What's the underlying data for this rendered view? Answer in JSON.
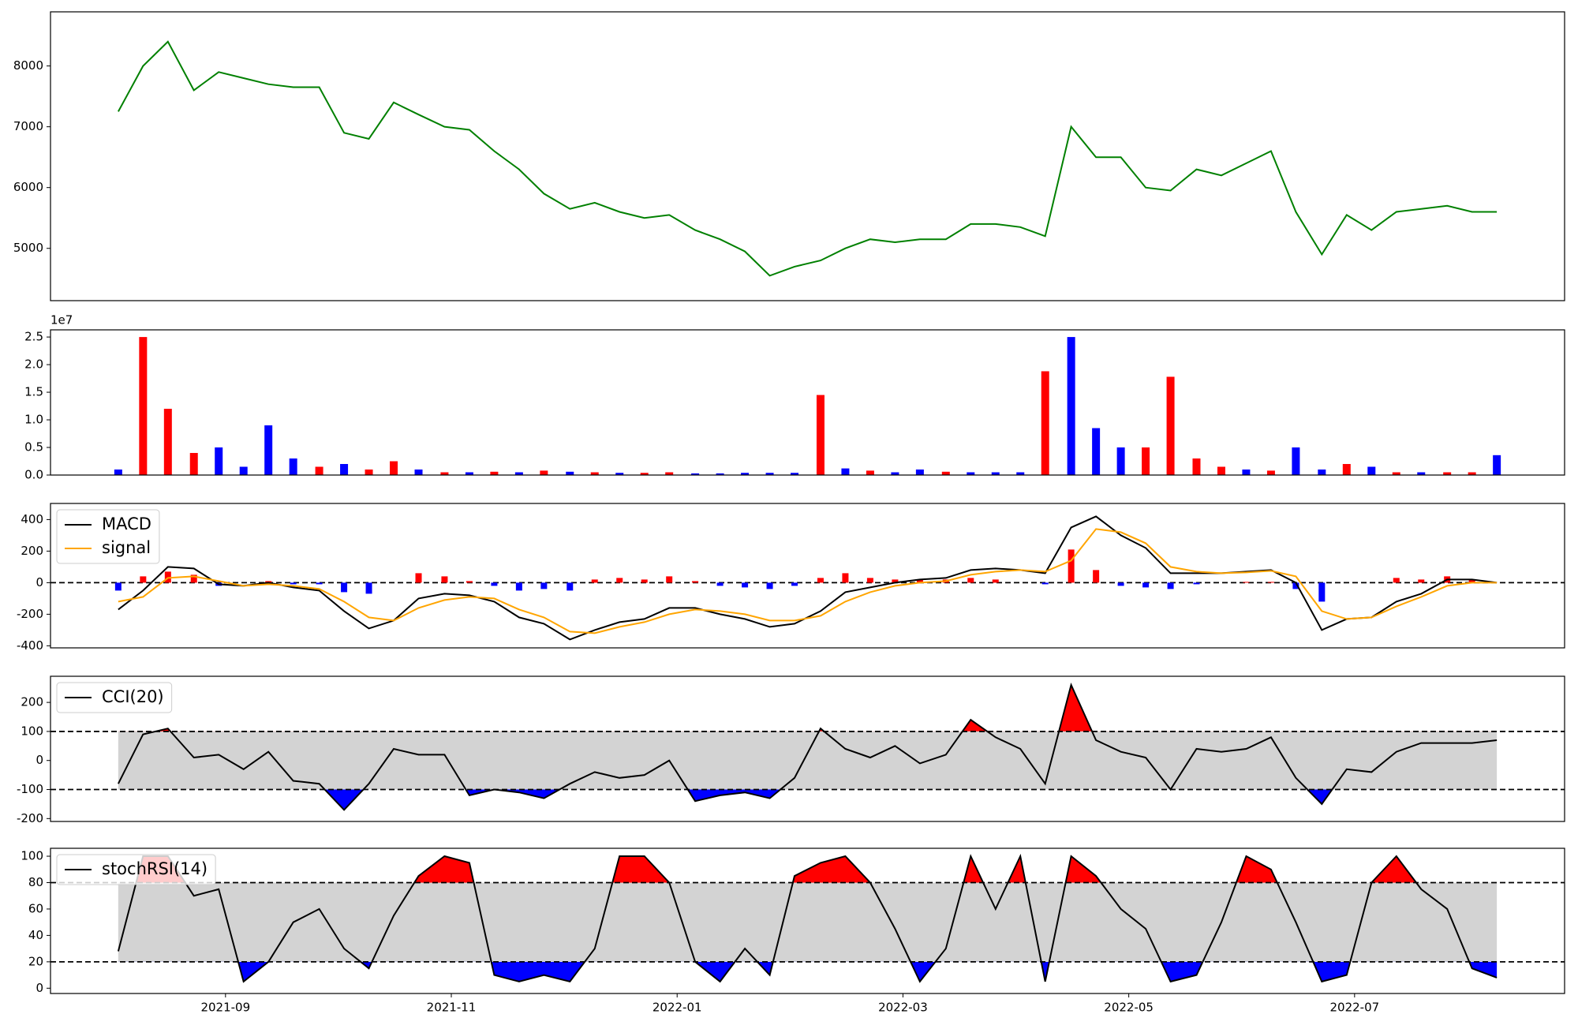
{
  "chart_data": [
    {
      "type": "line",
      "x": [
        0.05,
        0.27,
        0.49,
        0.72,
        0.94,
        1.16,
        1.38,
        1.6,
        1.83,
        2.05,
        2.27,
        2.49,
        2.71,
        2.94,
        3.16,
        3.38,
        3.6,
        3.82,
        4.05,
        4.27,
        4.49,
        4.71,
        4.93,
        5.16,
        5.38,
        5.6,
        5.82,
        6.04,
        6.27,
        6.49,
        6.71,
        6.93,
        7.15,
        7.38,
        7.6,
        7.82,
        8.04,
        8.26,
        8.49,
        8.71,
        8.93,
        9.15,
        9.37,
        9.6,
        9.82,
        10.04,
        10.26,
        10.48,
        10.71,
        10.93,
        11.15,
        11.37,
        11.59,
        11.82,
        12.04,
        12.26
      ],
      "xlim": [
        -0.55,
        12.86
      ],
      "ylim": [
        4140,
        8890
      ],
      "yticks": [
        5000,
        6000,
        7000,
        8000
      ],
      "series": [
        {
          "color": "green",
          "values": [
            7250,
            8000,
            8400,
            7600,
            7900,
            7800,
            7700,
            7650,
            7650,
            6900,
            6800,
            7400,
            7200,
            7000,
            6950,
            6600,
            6300,
            5900,
            5650,
            5750,
            5600,
            5500,
            5550,
            5300,
            5150,
            4950,
            4550,
            4700,
            4800,
            5000,
            5150,
            5100,
            5150,
            5150,
            5400,
            5400,
            5350,
            5200,
            7000,
            6500,
            6500,
            6000,
            5950,
            6300,
            6200,
            6400,
            6600,
            5600,
            4900,
            5550,
            5300,
            5600,
            5650,
            5700,
            5600,
            5600
          ]
        }
      ]
    },
    {
      "type": "bar",
      "x": [
        0.05,
        0.27,
        0.49,
        0.72,
        0.94,
        1.16,
        1.38,
        1.6,
        1.83,
        2.05,
        2.27,
        2.49,
        2.71,
        2.94,
        3.16,
        3.38,
        3.6,
        3.82,
        4.05,
        4.27,
        4.49,
        4.71,
        4.93,
        5.16,
        5.38,
        5.6,
        5.82,
        6.04,
        6.27,
        6.49,
        6.71,
        6.93,
        7.15,
        7.38,
        7.6,
        7.82,
        8.04,
        8.26,
        8.49,
        8.71,
        8.93,
        9.15,
        9.37,
        9.6,
        9.82,
        10.04,
        10.26,
        10.48,
        10.71,
        10.93,
        11.15,
        11.37,
        11.59,
        11.82,
        12.04,
        12.26
      ],
      "xlim": [
        -0.55,
        12.86
      ],
      "ylim": [
        0,
        2.63
      ],
      "yticks": [
        {
          "value": 0,
          "label": "0.0"
        },
        {
          "value": 0.5,
          "label": "0.5"
        },
        {
          "value": 1,
          "label": "1.0"
        },
        {
          "value": 1.5,
          "label": "1.5"
        },
        {
          "value": 2,
          "label": "2.0"
        },
        {
          "value": 2.5,
          "label": "2.5"
        }
      ],
      "offset_label": "1e7",
      "values": [
        0.1,
        2.5,
        1.2,
        0.4,
        0.5,
        0.15,
        0.9,
        0.3,
        0.15,
        0.2,
        0.1,
        0.25,
        0.1,
        0.05,
        0.05,
        0.06,
        0.05,
        0.08,
        0.06,
        0.05,
        0.04,
        0.04,
        0.05,
        0.03,
        0.03,
        0.04,
        0.04,
        0.04,
        1.45,
        0.12,
        0.08,
        0.05,
        0.1,
        0.06,
        0.05,
        0.05,
        0.05,
        1.88,
        2.5,
        0.85,
        0.5,
        0.5,
        1.78,
        0.3,
        0.15,
        0.1,
        0.08,
        0.5,
        0.1,
        0.2,
        0.15,
        0.05,
        0.05,
        0.05,
        0.05,
        0.36
      ],
      "colors": [
        "blue",
        "red",
        "red",
        "red",
        "blue",
        "blue",
        "blue",
        "blue",
        "red",
        "blue",
        "red",
        "red",
        "blue",
        "red",
        "blue",
        "red",
        "blue",
        "red",
        "blue",
        "red",
        "blue",
        "red",
        "red",
        "blue",
        "blue",
        "blue",
        "blue",
        "blue",
        "red",
        "blue",
        "red",
        "blue",
        "blue",
        "red",
        "blue",
        "blue",
        "blue",
        "red",
        "blue",
        "blue",
        "blue",
        "red",
        "red",
        "red",
        "red",
        "blue",
        "red",
        "blue",
        "blue",
        "red",
        "blue",
        "red",
        "blue",
        "red",
        "red",
        "blue"
      ]
    },
    {
      "type": "macd",
      "x": [
        0.05,
        0.27,
        0.49,
        0.72,
        0.94,
        1.16,
        1.38,
        1.6,
        1.83,
        2.05,
        2.27,
        2.49,
        2.71,
        2.94,
        3.16,
        3.38,
        3.6,
        3.82,
        4.05,
        4.27,
        4.49,
        4.71,
        4.93,
        5.16,
        5.38,
        5.6,
        5.82,
        6.04,
        6.27,
        6.49,
        6.71,
        6.93,
        7.15,
        7.38,
        7.6,
        7.82,
        8.04,
        8.26,
        8.49,
        8.71,
        8.93,
        9.15,
        9.37,
        9.6,
        9.82,
        10.04,
        10.26,
        10.48,
        10.71,
        10.93,
        11.15,
        11.37,
        11.59,
        11.82,
        12.04,
        12.26
      ],
      "xlim": [
        -0.55,
        12.86
      ],
      "ylim": [
        -413,
        502
      ],
      "yticks": [
        -400,
        -200,
        0,
        200,
        400
      ],
      "hlines": [
        0
      ],
      "legend": "upper left",
      "series": [
        {
          "name": "MACD",
          "color": "black",
          "values": [
            -170,
            -50,
            100,
            90,
            -10,
            -20,
            0,
            -30,
            -50,
            -180,
            -290,
            -240,
            -100,
            -70,
            -80,
            -120,
            -220,
            -260,
            -360,
            -300,
            -250,
            -230,
            -160,
            -160,
            -200,
            -230,
            -280,
            -260,
            -180,
            -60,
            -30,
            0,
            20,
            30,
            80,
            90,
            80,
            60,
            350,
            420,
            300,
            220,
            60,
            60,
            60,
            70,
            80,
            0,
            -300,
            -230,
            -220,
            -120,
            -70,
            20,
            20,
            0
          ]
        },
        {
          "name": "signal",
          "color": "orange",
          "values": [
            -120,
            -90,
            30,
            40,
            10,
            -20,
            -10,
            -20,
            -40,
            -120,
            -220,
            -240,
            -160,
            -110,
            -90,
            -100,
            -170,
            -220,
            -310,
            -320,
            -280,
            -250,
            -200,
            -170,
            -180,
            -200,
            -240,
            -240,
            -210,
            -120,
            -60,
            -20,
            0,
            10,
            50,
            70,
            80,
            70,
            140,
            340,
            320,
            250,
            100,
            70,
            60,
            65,
            75,
            40,
            -180,
            -230,
            -220,
            -150,
            -90,
            -20,
            0,
            0
          ]
        }
      ],
      "histogram": {
        "up_color": "red",
        "down_color": "blue",
        "values": [
          -50,
          40,
          70,
          50,
          -20,
          0,
          10,
          -10,
          -10,
          -60,
          -70,
          0,
          60,
          40,
          10,
          -20,
          -50,
          -40,
          -50,
          20,
          30,
          20,
          40,
          10,
          -20,
          -30,
          -40,
          -20,
          30,
          60,
          30,
          20,
          20,
          20,
          30,
          20,
          0,
          -10,
          210,
          80,
          -20,
          -30,
          -40,
          -10,
          0,
          5,
          5,
          -40,
          -120,
          0,
          0,
          30,
          20,
          40,
          20,
          0
        ]
      }
    },
    {
      "type": "oscillator",
      "x": [
        0.05,
        0.27,
        0.49,
        0.72,
        0.94,
        1.16,
        1.38,
        1.6,
        1.83,
        2.05,
        2.27,
        2.49,
        2.71,
        2.94,
        3.16,
        3.38,
        3.6,
        3.82,
        4.05,
        4.27,
        4.49,
        4.71,
        4.93,
        5.16,
        5.38,
        5.6,
        5.82,
        6.04,
        6.27,
        6.49,
        6.71,
        6.93,
        7.15,
        7.38,
        7.6,
        7.82,
        8.04,
        8.26,
        8.49,
        8.71,
        8.93,
        9.15,
        9.37,
        9.6,
        9.82,
        10.04,
        10.26,
        10.48,
        10.71,
        10.93,
        11.15,
        11.37,
        11.59,
        11.82,
        12.04,
        12.26
      ],
      "xlim": [
        -0.55,
        12.86
      ],
      "ylim": [
        -210,
        290
      ],
      "yticks": [
        -200,
        -100,
        0,
        100,
        200
      ],
      "hlines": [
        100,
        -100
      ],
      "band_color": "lightgray",
      "above_color": "red",
      "below_color": "blue",
      "legend": "upper left",
      "series": [
        {
          "name": "CCI(20)",
          "color": "black",
          "values": [
            -80,
            90,
            110,
            10,
            20,
            -30,
            30,
            -70,
            -80,
            -170,
            -80,
            40,
            20,
            20,
            -120,
            -100,
            -110,
            -130,
            -80,
            -40,
            -60,
            -50,
            0,
            -140,
            -120,
            -110,
            -130,
            -60,
            110,
            40,
            10,
            50,
            -10,
            20,
            140,
            80,
            40,
            -80,
            260,
            70,
            30,
            10,
            -100,
            40,
            30,
            40,
            80,
            -60,
            -150,
            -30,
            -40,
            30,
            60,
            60,
            60,
            70
          ]
        }
      ]
    },
    {
      "type": "oscillator",
      "x": [
        0.05,
        0.27,
        0.49,
        0.72,
        0.94,
        1.16,
        1.38,
        1.6,
        1.83,
        2.05,
        2.27,
        2.49,
        2.71,
        2.94,
        3.16,
        3.38,
        3.6,
        3.82,
        4.05,
        4.27,
        4.49,
        4.71,
        4.93,
        5.16,
        5.38,
        5.6,
        5.82,
        6.04,
        6.27,
        6.49,
        6.71,
        6.93,
        7.15,
        7.38,
        7.6,
        7.82,
        8.04,
        8.26,
        8.49,
        8.71,
        8.93,
        9.15,
        9.37,
        9.6,
        9.82,
        10.04,
        10.26,
        10.48,
        10.71,
        10.93,
        11.15,
        11.37,
        11.59,
        11.82,
        12.04,
        12.26
      ],
      "xlim": [
        -0.55,
        12.86
      ],
      "ylim": [
        -4,
        106
      ],
      "yticks": [
        0,
        20,
        40,
        60,
        80,
        100
      ],
      "xticks": [
        {
          "value": 1,
          "label": "2021-09"
        },
        {
          "value": 3,
          "label": "2021-11"
        },
        {
          "value": 5,
          "label": "2022-01"
        },
        {
          "value": 7,
          "label": "2022-03"
        },
        {
          "value": 9,
          "label": "2022-05"
        },
        {
          "value": 11,
          "label": "2022-07"
        }
      ],
      "hlines": [
        80,
        20
      ],
      "band_color": "lightgray",
      "above_color": "red",
      "below_color": "blue",
      "legend": "upper left",
      "series": [
        {
          "name": "stochRSI(14)",
          "color": "black",
          "values": [
            28,
            100,
            100,
            70,
            75,
            5,
            20,
            50,
            60,
            30,
            15,
            55,
            85,
            100,
            95,
            10,
            5,
            10,
            5,
            30,
            100,
            100,
            80,
            20,
            5,
            30,
            10,
            85,
            95,
            100,
            80,
            45,
            5,
            30,
            100,
            60,
            100,
            5,
            100,
            85,
            60,
            45,
            5,
            10,
            50,
            100,
            90,
            50,
            5,
            10,
            80,
            100,
            75,
            60,
            15,
            8
          ]
        }
      ]
    }
  ]
}
